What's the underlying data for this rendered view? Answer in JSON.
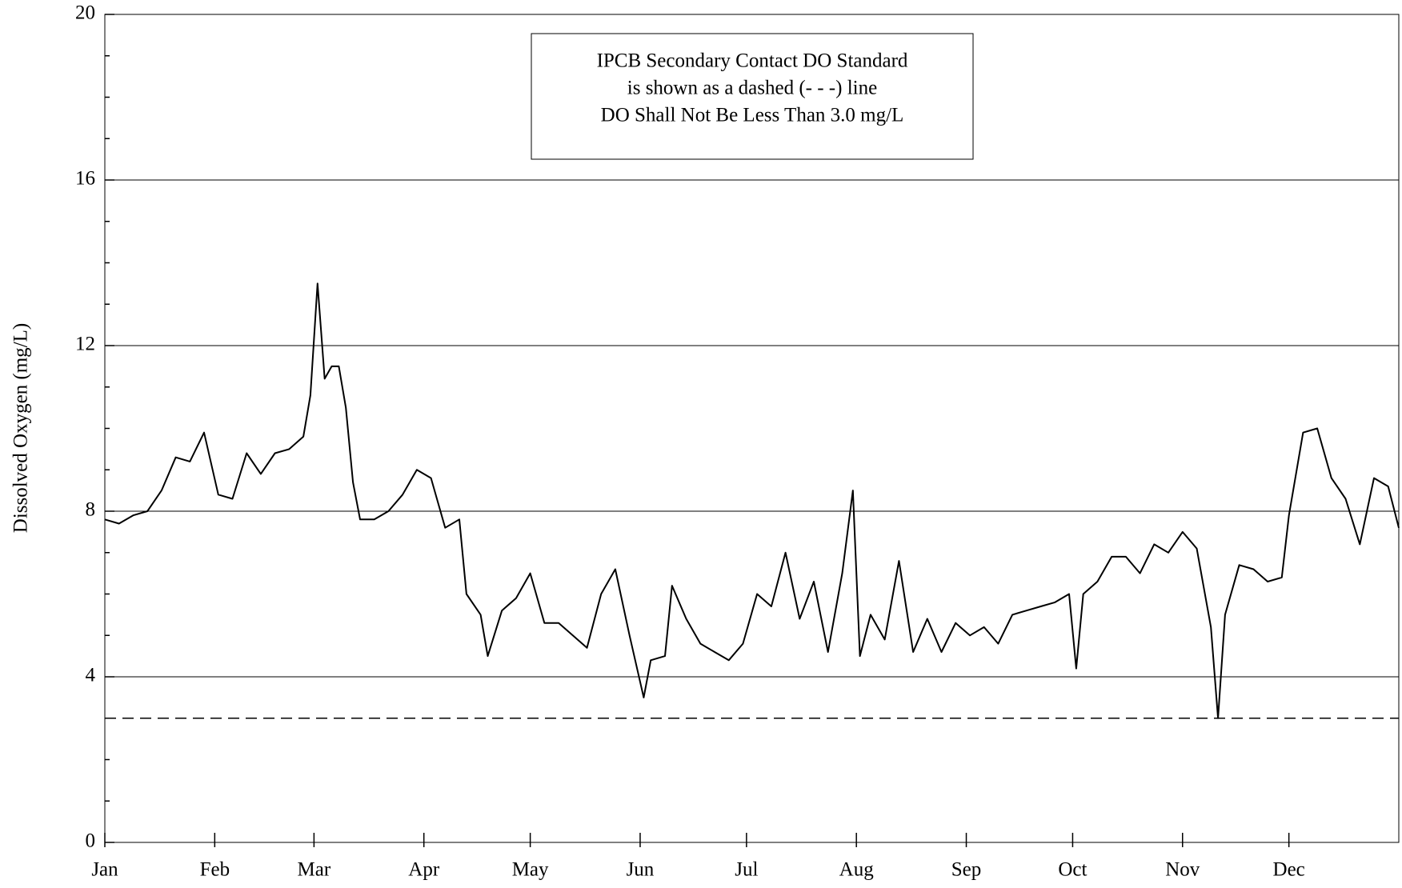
{
  "chart_data": {
    "type": "line",
    "ylabel": "Dissolved Oxygen (mg/L)",
    "annotation": [
      "IPCB Secondary Contact DO Standard",
      "is shown as a dashed (- - -) line",
      "DO Shall Not Be Less Than 3.0 mg/L"
    ],
    "reference_line": {
      "value": 3.0,
      "style": "dashed",
      "color": "#000000"
    },
    "x": [
      0,
      4,
      8,
      12,
      16,
      20,
      24,
      28,
      32,
      36,
      40,
      44,
      48,
      52,
      56,
      58,
      60,
      62,
      64,
      66,
      68,
      70,
      72,
      76,
      80,
      84,
      88,
      92,
      96,
      100,
      102,
      106,
      108,
      112,
      116,
      120,
      124,
      128,
      132,
      136,
      140,
      144,
      148,
      152,
      154,
      158,
      160,
      164,
      168,
      172,
      176,
      180,
      184,
      188,
      192,
      196,
      200,
      204,
      208,
      211,
      213,
      216,
      220,
      224,
      228,
      232,
      236,
      240,
      244,
      248,
      252,
      256,
      260,
      264,
      268,
      272,
      274,
      276,
      280,
      284,
      288,
      292,
      296,
      300,
      304,
      308,
      312,
      314,
      316,
      320,
      324,
      328,
      332,
      334,
      338,
      342,
      346,
      350,
      354,
      358,
      362,
      365
    ],
    "series": [
      {
        "name": "Dissolved Oxygen",
        "color": "#000000",
        "values": [
          7.8,
          7.7,
          7.9,
          8.0,
          8.5,
          9.3,
          9.2,
          9.9,
          8.4,
          8.3,
          9.4,
          8.9,
          9.4,
          9.5,
          9.8,
          10.8,
          13.5,
          11.2,
          11.5,
          11.5,
          10.5,
          8.7,
          7.8,
          7.8,
          8.0,
          8.4,
          9.0,
          8.8,
          7.6,
          7.8,
          6.0,
          5.5,
          4.5,
          5.6,
          5.9,
          6.5,
          5.3,
          5.3,
          5.0,
          4.7,
          6.0,
          6.6,
          5.0,
          3.5,
          4.4,
          4.5,
          6.2,
          5.4,
          4.8,
          4.6,
          4.4,
          4.8,
          6.0,
          5.7,
          7.0,
          5.4,
          6.3,
          4.6,
          6.5,
          8.5,
          4.5,
          5.5,
          4.9,
          6.8,
          4.6,
          5.4,
          4.6,
          5.3,
          5.0,
          5.2,
          4.8,
          5.5,
          5.6,
          5.7,
          5.8,
          6.0,
          4.2,
          6.0,
          6.3,
          6.9,
          6.9,
          6.5,
          7.2,
          7.0,
          7.5,
          7.1,
          5.2,
          3.0,
          5.5,
          6.7,
          6.6,
          6.3,
          6.4,
          7.9,
          9.9,
          10.0,
          8.8,
          8.3,
          7.2,
          8.8,
          8.6,
          7.6
        ]
      }
    ],
    "xlim": [
      0,
      365
    ],
    "xticks": [
      {
        "value": 0,
        "label": "Jan"
      },
      {
        "value": 31,
        "label": "Feb"
      },
      {
        "value": 59,
        "label": "Mar"
      },
      {
        "value": 90,
        "label": "Apr"
      },
      {
        "value": 120,
        "label": "May"
      },
      {
        "value": 151,
        "label": "Jun"
      },
      {
        "value": 181,
        "label": "Jul"
      },
      {
        "value": 212,
        "label": "Aug"
      },
      {
        "value": 243,
        "label": "Sep"
      },
      {
        "value": 273,
        "label": "Oct"
      },
      {
        "value": 304,
        "label": "Nov"
      },
      {
        "value": 334,
        "label": "Dec"
      }
    ],
    "ylim": [
      0,
      20
    ],
    "yticks": [
      0,
      4,
      8,
      12,
      16,
      20
    ],
    "yminorticks": [
      1,
      2,
      3,
      5,
      6,
      7,
      9,
      10,
      11,
      13,
      14,
      15,
      17,
      18,
      19
    ],
    "grid": true
  }
}
